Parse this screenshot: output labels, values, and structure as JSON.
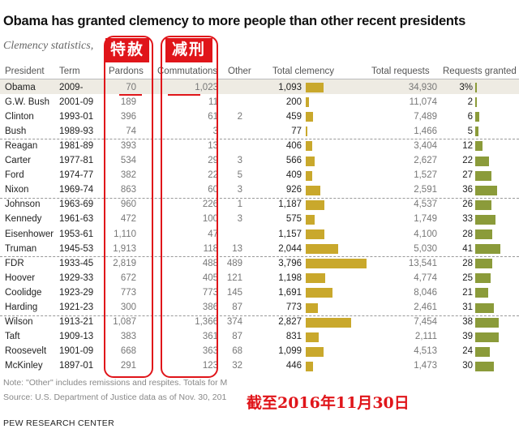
{
  "title": "Obama has granted clemency to more people than other recent presidents",
  "subtitle": "Clemency statistics,",
  "annotations": {
    "pardons_cn": "特赦",
    "commutations_cn": "减刑",
    "date_cn": "截至2016年11月30日"
  },
  "notes": {
    "note": "Note: \"Other\" includes remissions and respites. Totals for M",
    "source": "Source: U.S. Department of Justice data as of Nov. 30, 201",
    "org": "PEW RESEARCH CENTER"
  },
  "colors": {
    "total_bar": "#c9a82c",
    "granted_bar": "#8b9b3a",
    "annotation_red": "#e0151a",
    "highlight_row": "#eeebe3"
  },
  "chart_data": {
    "type": "table",
    "columns": [
      "President",
      "Term",
      "Pardons",
      "Commutations",
      "Other",
      "Total clemency",
      "Total requests",
      "Requests granted"
    ],
    "rows": [
      {
        "president": "Obama",
        "term": "2009-",
        "pardons": "70",
        "commutations": "1,023",
        "other": "",
        "total": "1,093",
        "total_value": 1093,
        "requests": "34,930",
        "granted": "3%",
        "granted_value": 3
      },
      {
        "president": "G.W. Bush",
        "term": "2001-09",
        "pardons": "189",
        "commutations": "11",
        "other": "",
        "total": "200",
        "total_value": 200,
        "requests": "11,074",
        "granted": "2",
        "granted_value": 2
      },
      {
        "president": "Clinton",
        "term": "1993-01",
        "pardons": "396",
        "commutations": "61",
        "other": "2",
        "total": "459",
        "total_value": 459,
        "requests": "7,489",
        "granted": "6",
        "granted_value": 6
      },
      {
        "president": "Bush",
        "term": "1989-93",
        "pardons": "74",
        "commutations": "3",
        "other": "",
        "total": "77",
        "total_value": 77,
        "requests": "1,466",
        "granted": "5",
        "granted_value": 5
      },
      {
        "president": "Reagan",
        "term": "1981-89",
        "pardons": "393",
        "commutations": "13",
        "other": "",
        "total": "406",
        "total_value": 406,
        "requests": "3,404",
        "granted": "12",
        "granted_value": 12
      },
      {
        "president": "Carter",
        "term": "1977-81",
        "pardons": "534",
        "commutations": "29",
        "other": "3",
        "total": "566",
        "total_value": 566,
        "requests": "2,627",
        "granted": "22",
        "granted_value": 22
      },
      {
        "president": "Ford",
        "term": "1974-77",
        "pardons": "382",
        "commutations": "22",
        "other": "5",
        "total": "409",
        "total_value": 409,
        "requests": "1,527",
        "granted": "27",
        "granted_value": 27
      },
      {
        "president": "Nixon",
        "term": "1969-74",
        "pardons": "863",
        "commutations": "60",
        "other": "3",
        "total": "926",
        "total_value": 926,
        "requests": "2,591",
        "granted": "36",
        "granted_value": 36
      },
      {
        "president": "Johnson",
        "term": "1963-69",
        "pardons": "960",
        "commutations": "226",
        "other": "1",
        "total": "1,187",
        "total_value": 1187,
        "requests": "4,537",
        "granted": "26",
        "granted_value": 26
      },
      {
        "president": "Kennedy",
        "term": "1961-63",
        "pardons": "472",
        "commutations": "100",
        "other": "3",
        "total": "575",
        "total_value": 575,
        "requests": "1,749",
        "granted": "33",
        "granted_value": 33
      },
      {
        "president": "Eisenhower",
        "term": "1953-61",
        "pardons": "1,110",
        "commutations": "47",
        "other": "",
        "total": "1,157",
        "total_value": 1157,
        "requests": "4,100",
        "granted": "28",
        "granted_value": 28
      },
      {
        "president": "Truman",
        "term": "1945-53",
        "pardons": "1,913",
        "commutations": "118",
        "other": "13",
        "total": "2,044",
        "total_value": 2044,
        "requests": "5,030",
        "granted": "41",
        "granted_value": 41
      },
      {
        "president": "FDR",
        "term": "1933-45",
        "pardons": "2,819",
        "commutations": "488",
        "other": "489",
        "total": "3,796",
        "total_value": 3796,
        "requests": "13,541",
        "granted": "28",
        "granted_value": 28
      },
      {
        "president": "Hoover",
        "term": "1929-33",
        "pardons": "672",
        "commutations": "405",
        "other": "121",
        "total": "1,198",
        "total_value": 1198,
        "requests": "4,774",
        "granted": "25",
        "granted_value": 25
      },
      {
        "president": "Coolidge",
        "term": "1923-29",
        "pardons": "773",
        "commutations": "773",
        "other": "145",
        "total": "1,691",
        "total_value": 1691,
        "requests": "8,046",
        "granted": "21",
        "granted_value": 21
      },
      {
        "president": "Harding",
        "term": "1921-23",
        "pardons": "300",
        "commutations": "386",
        "other": "87",
        "total": "773",
        "total_value": 773,
        "requests": "2,461",
        "granted": "31",
        "granted_value": 31
      },
      {
        "president": "Wilson",
        "term": "1913-21",
        "pardons": "1,087",
        "commutations": "1,366",
        "other": "374",
        "total": "2,827",
        "total_value": 2827,
        "requests": "7,454",
        "granted": "38",
        "granted_value": 38
      },
      {
        "president": "Taft",
        "term": "1909-13",
        "pardons": "383",
        "commutations": "361",
        "other": "87",
        "total": "831",
        "total_value": 831,
        "requests": "2,111",
        "granted": "39",
        "granted_value": 39
      },
      {
        "president": "Roosevelt",
        "term": "1901-09",
        "pardons": "668",
        "commutations": "363",
        "other": "68",
        "total": "1,099",
        "total_value": 1099,
        "requests": "4,513",
        "granted": "24",
        "granted_value": 24
      },
      {
        "president": "McKinley",
        "term": "1897-01",
        "pardons": "291",
        "commutations": "123",
        "other": "32",
        "total": "446",
        "total_value": 446,
        "requests": "1,473",
        "granted": "30",
        "granted_value": 30
      }
    ]
  }
}
